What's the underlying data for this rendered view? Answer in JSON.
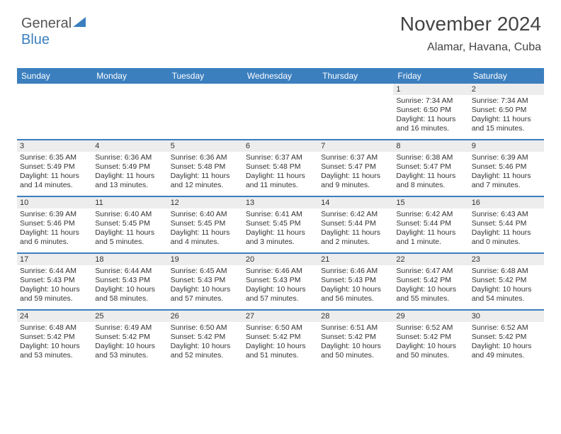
{
  "logo": {
    "word1": "General",
    "word2": "Blue",
    "icon_color": "#3b7fbf"
  },
  "title": "November 2024",
  "location": "Alamar, Havana, Cuba",
  "colors": {
    "header_bg": "#3b7fbf",
    "greybar": "#ededed",
    "text": "#333333",
    "white": "#ffffff"
  },
  "font_sizes": {
    "title": 28,
    "subtitle": 16,
    "dayhead": 12,
    "cell": 10.5
  },
  "day_headers": [
    "Sunday",
    "Monday",
    "Tuesday",
    "Wednesday",
    "Thursday",
    "Friday",
    "Saturday"
  ],
  "weeks": [
    [
      {
        "date": "",
        "sunrise": "",
        "sunset": "",
        "daylight1": "",
        "daylight2": "",
        "empty": true
      },
      {
        "date": "",
        "sunrise": "",
        "sunset": "",
        "daylight1": "",
        "daylight2": "",
        "empty": true
      },
      {
        "date": "",
        "sunrise": "",
        "sunset": "",
        "daylight1": "",
        "daylight2": "",
        "empty": true
      },
      {
        "date": "",
        "sunrise": "",
        "sunset": "",
        "daylight1": "",
        "daylight2": "",
        "empty": true
      },
      {
        "date": "",
        "sunrise": "",
        "sunset": "",
        "daylight1": "",
        "daylight2": "",
        "empty": true
      },
      {
        "date": "1",
        "sunrise": "Sunrise: 7:34 AM",
        "sunset": "Sunset: 6:50 PM",
        "daylight1": "Daylight: 11 hours",
        "daylight2": "and 16 minutes."
      },
      {
        "date": "2",
        "sunrise": "Sunrise: 7:34 AM",
        "sunset": "Sunset: 6:50 PM",
        "daylight1": "Daylight: 11 hours",
        "daylight2": "and 15 minutes."
      }
    ],
    [
      {
        "date": "3",
        "sunrise": "Sunrise: 6:35 AM",
        "sunset": "Sunset: 5:49 PM",
        "daylight1": "Daylight: 11 hours",
        "daylight2": "and 14 minutes."
      },
      {
        "date": "4",
        "sunrise": "Sunrise: 6:36 AM",
        "sunset": "Sunset: 5:49 PM",
        "daylight1": "Daylight: 11 hours",
        "daylight2": "and 13 minutes."
      },
      {
        "date": "5",
        "sunrise": "Sunrise: 6:36 AM",
        "sunset": "Sunset: 5:48 PM",
        "daylight1": "Daylight: 11 hours",
        "daylight2": "and 12 minutes."
      },
      {
        "date": "6",
        "sunrise": "Sunrise: 6:37 AM",
        "sunset": "Sunset: 5:48 PM",
        "daylight1": "Daylight: 11 hours",
        "daylight2": "and 11 minutes."
      },
      {
        "date": "7",
        "sunrise": "Sunrise: 6:37 AM",
        "sunset": "Sunset: 5:47 PM",
        "daylight1": "Daylight: 11 hours",
        "daylight2": "and 9 minutes."
      },
      {
        "date": "8",
        "sunrise": "Sunrise: 6:38 AM",
        "sunset": "Sunset: 5:47 PM",
        "daylight1": "Daylight: 11 hours",
        "daylight2": "and 8 minutes."
      },
      {
        "date": "9",
        "sunrise": "Sunrise: 6:39 AM",
        "sunset": "Sunset: 5:46 PM",
        "daylight1": "Daylight: 11 hours",
        "daylight2": "and 7 minutes."
      }
    ],
    [
      {
        "date": "10",
        "sunrise": "Sunrise: 6:39 AM",
        "sunset": "Sunset: 5:46 PM",
        "daylight1": "Daylight: 11 hours",
        "daylight2": "and 6 minutes."
      },
      {
        "date": "11",
        "sunrise": "Sunrise: 6:40 AM",
        "sunset": "Sunset: 5:45 PM",
        "daylight1": "Daylight: 11 hours",
        "daylight2": "and 5 minutes."
      },
      {
        "date": "12",
        "sunrise": "Sunrise: 6:40 AM",
        "sunset": "Sunset: 5:45 PM",
        "daylight1": "Daylight: 11 hours",
        "daylight2": "and 4 minutes."
      },
      {
        "date": "13",
        "sunrise": "Sunrise: 6:41 AM",
        "sunset": "Sunset: 5:45 PM",
        "daylight1": "Daylight: 11 hours",
        "daylight2": "and 3 minutes."
      },
      {
        "date": "14",
        "sunrise": "Sunrise: 6:42 AM",
        "sunset": "Sunset: 5:44 PM",
        "daylight1": "Daylight: 11 hours",
        "daylight2": "and 2 minutes."
      },
      {
        "date": "15",
        "sunrise": "Sunrise: 6:42 AM",
        "sunset": "Sunset: 5:44 PM",
        "daylight1": "Daylight: 11 hours",
        "daylight2": "and 1 minute."
      },
      {
        "date": "16",
        "sunrise": "Sunrise: 6:43 AM",
        "sunset": "Sunset: 5:44 PM",
        "daylight1": "Daylight: 11 hours",
        "daylight2": "and 0 minutes."
      }
    ],
    [
      {
        "date": "17",
        "sunrise": "Sunrise: 6:44 AM",
        "sunset": "Sunset: 5:43 PM",
        "daylight1": "Daylight: 10 hours",
        "daylight2": "and 59 minutes."
      },
      {
        "date": "18",
        "sunrise": "Sunrise: 6:44 AM",
        "sunset": "Sunset: 5:43 PM",
        "daylight1": "Daylight: 10 hours",
        "daylight2": "and 58 minutes."
      },
      {
        "date": "19",
        "sunrise": "Sunrise: 6:45 AM",
        "sunset": "Sunset: 5:43 PM",
        "daylight1": "Daylight: 10 hours",
        "daylight2": "and 57 minutes."
      },
      {
        "date": "20",
        "sunrise": "Sunrise: 6:46 AM",
        "sunset": "Sunset: 5:43 PM",
        "daylight1": "Daylight: 10 hours",
        "daylight2": "and 57 minutes."
      },
      {
        "date": "21",
        "sunrise": "Sunrise: 6:46 AM",
        "sunset": "Sunset: 5:43 PM",
        "daylight1": "Daylight: 10 hours",
        "daylight2": "and 56 minutes."
      },
      {
        "date": "22",
        "sunrise": "Sunrise: 6:47 AM",
        "sunset": "Sunset: 5:42 PM",
        "daylight1": "Daylight: 10 hours",
        "daylight2": "and 55 minutes."
      },
      {
        "date": "23",
        "sunrise": "Sunrise: 6:48 AM",
        "sunset": "Sunset: 5:42 PM",
        "daylight1": "Daylight: 10 hours",
        "daylight2": "and 54 minutes."
      }
    ],
    [
      {
        "date": "24",
        "sunrise": "Sunrise: 6:48 AM",
        "sunset": "Sunset: 5:42 PM",
        "daylight1": "Daylight: 10 hours",
        "daylight2": "and 53 minutes."
      },
      {
        "date": "25",
        "sunrise": "Sunrise: 6:49 AM",
        "sunset": "Sunset: 5:42 PM",
        "daylight1": "Daylight: 10 hours",
        "daylight2": "and 53 minutes."
      },
      {
        "date": "26",
        "sunrise": "Sunrise: 6:50 AM",
        "sunset": "Sunset: 5:42 PM",
        "daylight1": "Daylight: 10 hours",
        "daylight2": "and 52 minutes."
      },
      {
        "date": "27",
        "sunrise": "Sunrise: 6:50 AM",
        "sunset": "Sunset: 5:42 PM",
        "daylight1": "Daylight: 10 hours",
        "daylight2": "and 51 minutes."
      },
      {
        "date": "28",
        "sunrise": "Sunrise: 6:51 AM",
        "sunset": "Sunset: 5:42 PM",
        "daylight1": "Daylight: 10 hours",
        "daylight2": "and 50 minutes."
      },
      {
        "date": "29",
        "sunrise": "Sunrise: 6:52 AM",
        "sunset": "Sunset: 5:42 PM",
        "daylight1": "Daylight: 10 hours",
        "daylight2": "and 50 minutes."
      },
      {
        "date": "30",
        "sunrise": "Sunrise: 6:52 AM",
        "sunset": "Sunset: 5:42 PM",
        "daylight1": "Daylight: 10 hours",
        "daylight2": "and 49 minutes."
      }
    ]
  ]
}
